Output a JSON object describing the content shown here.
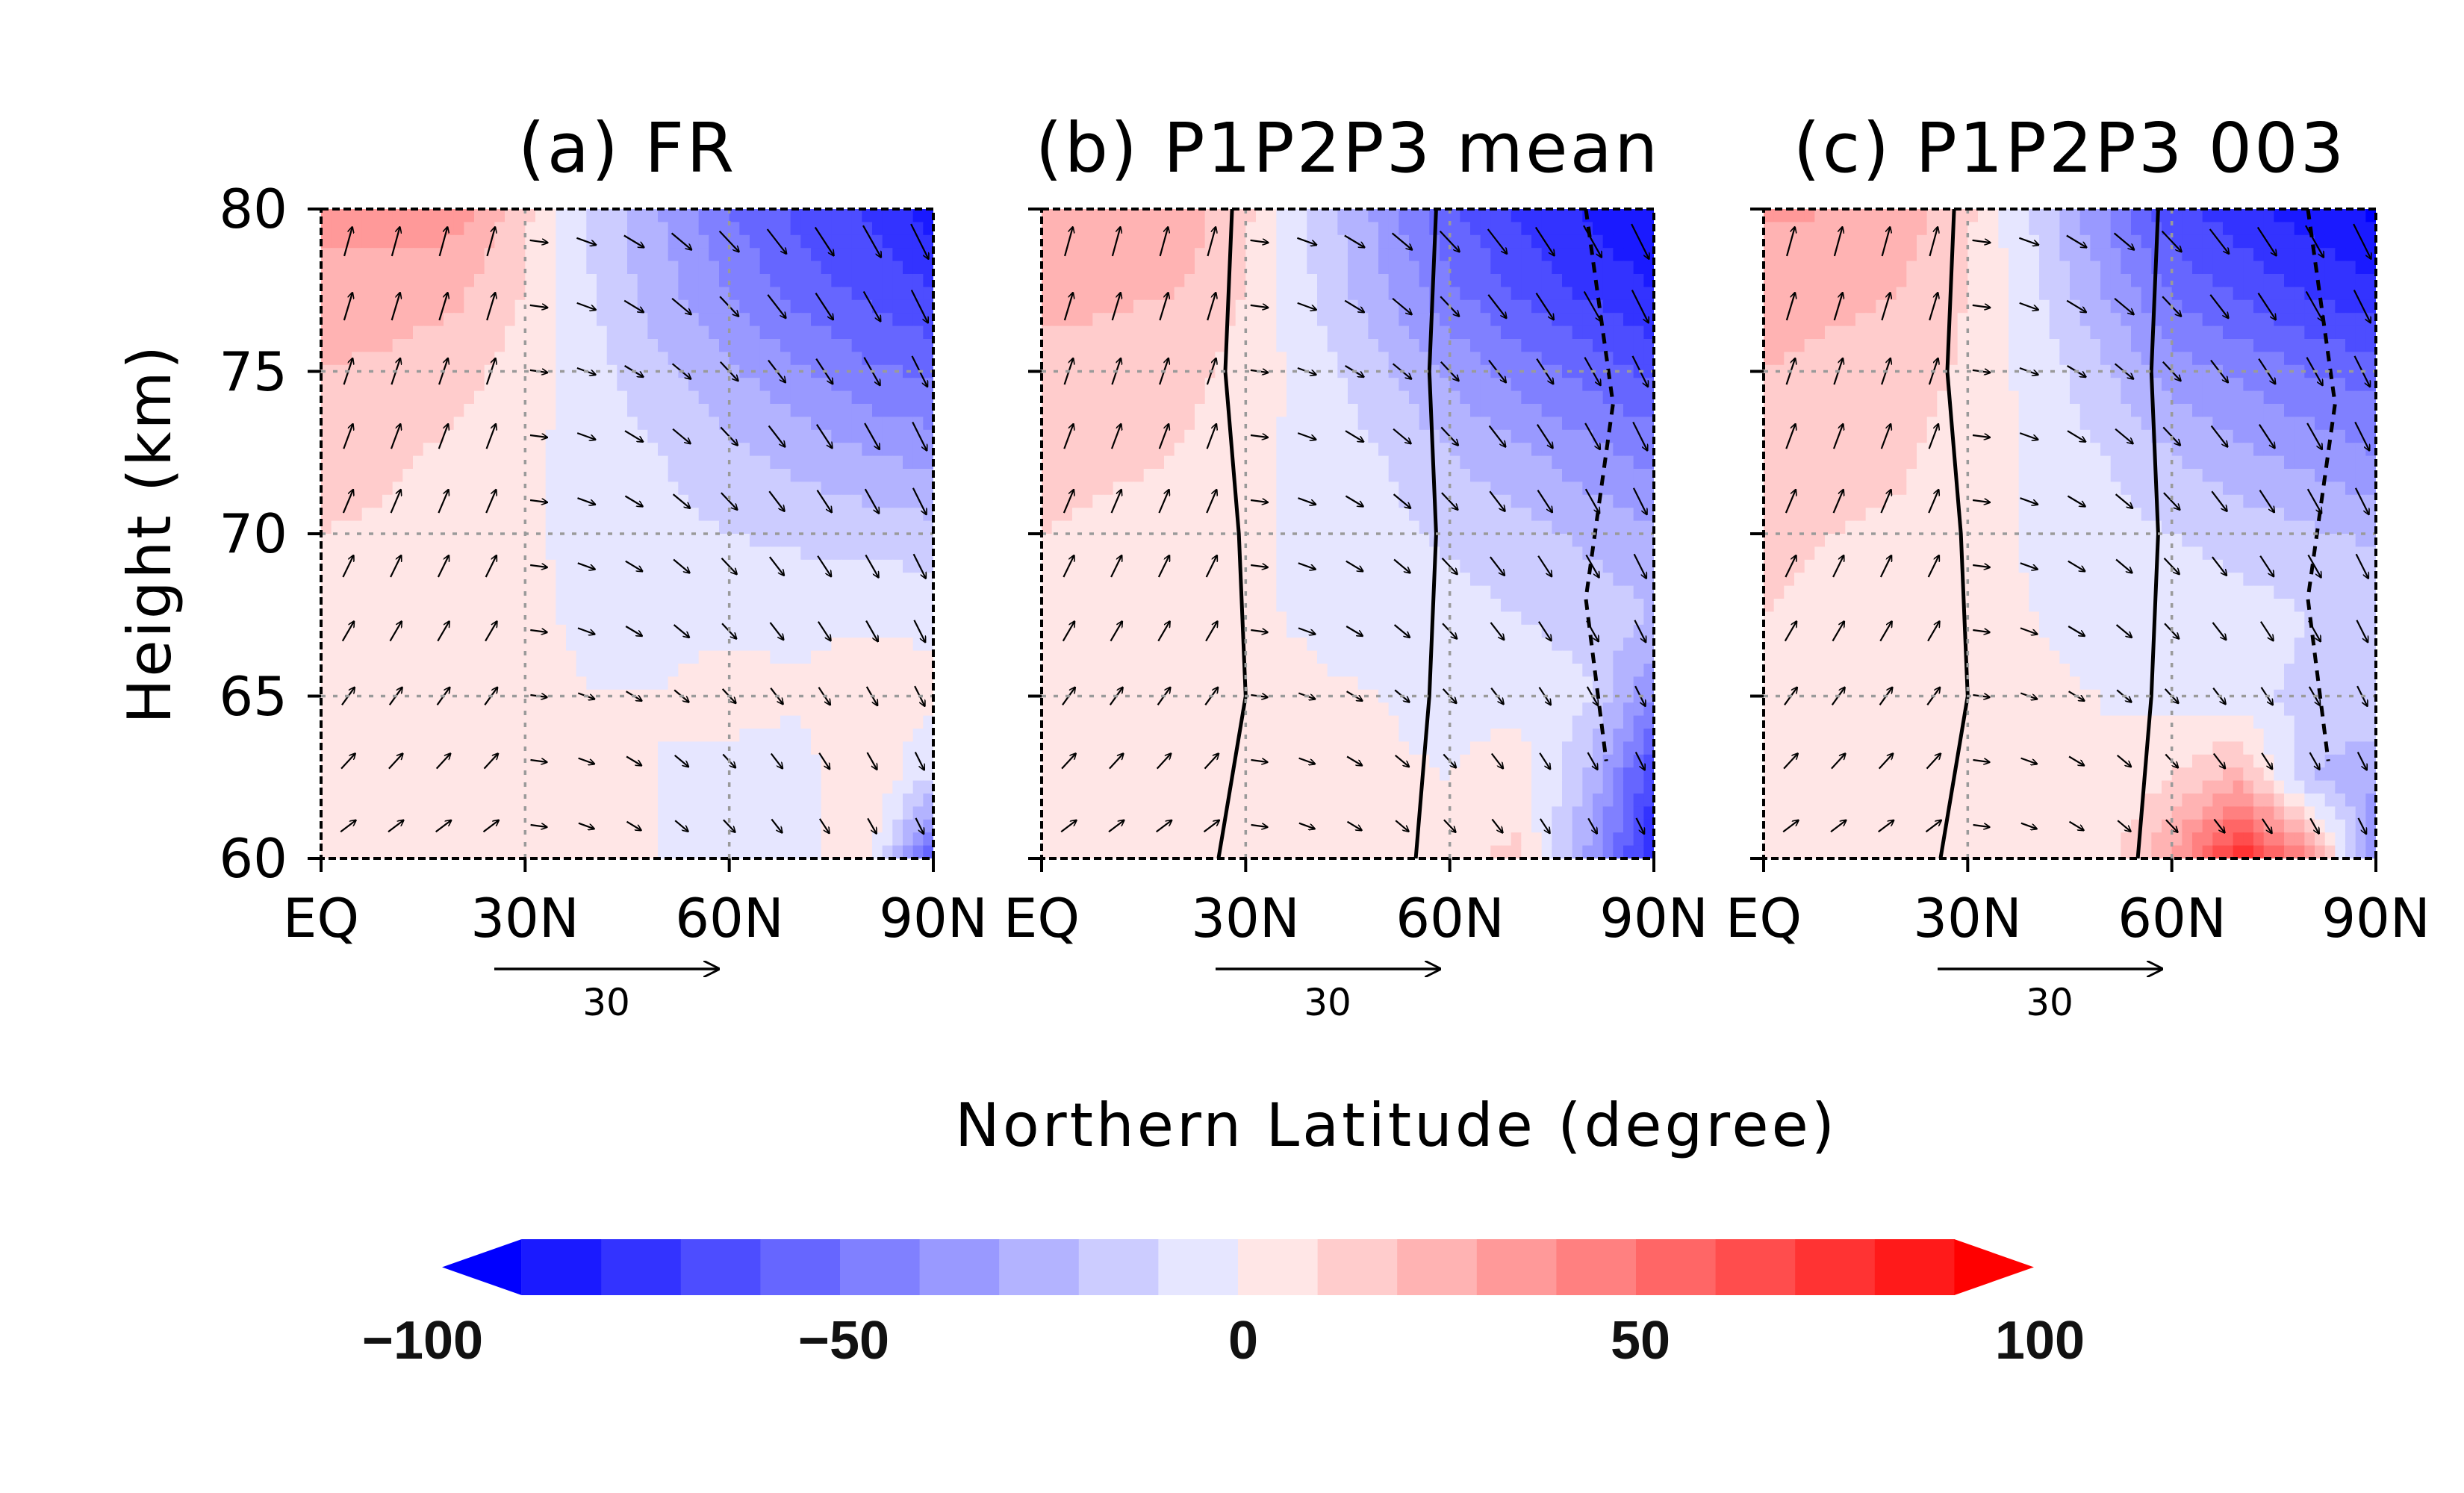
{
  "chart_data": {
    "type": "heatmap",
    "ylabel": "Height (km)",
    "xlabel": "Northern Latitude (degree)",
    "x_ticks": [
      "EQ",
      "30N",
      "60N",
      "90N"
    ],
    "y_ticks": [
      "60",
      "65",
      "70",
      "75",
      "80"
    ],
    "xlim": [
      0,
      90
    ],
    "ylim": [
      60,
      80
    ],
    "grid": "dotted gray at 30N, 60N and 65, 70, 75 km",
    "reference_vector": {
      "label": "30"
    },
    "colorbar": {
      "ticks": [
        "−100",
        "−50",
        "0",
        "50",
        "100"
      ],
      "range": [
        -100,
        100
      ],
      "step": 10,
      "colors": [
        "#0000ff",
        "#1a1aff",
        "#3333ff",
        "#4d4dff",
        "#6666ff",
        "#8080ff",
        "#9999ff",
        "#b3b3ff",
        "#ccccff",
        "#e6e6ff",
        "#ffe6e6",
        "#ffcccc",
        "#ffb3b3",
        "#ff9999",
        "#ff8080",
        "#ff6666",
        "#ff4d4d",
        "#ff3333",
        "#ff1a1a",
        "#ff0000"
      ],
      "extend": "both"
    },
    "panels": [
      {
        "title": "(a) FR",
        "contours": false,
        "field_rows_height_km": [
          80,
          77.5,
          75,
          72.5,
          70,
          67.5,
          65,
          62.5,
          60
        ],
        "field_cols_lat": [
          0,
          10,
          20,
          30,
          40,
          50,
          60,
          70,
          80,
          90
        ],
        "field": [
          [
            35,
            35,
            35,
            12,
            -12,
            -30,
            -50,
            -62,
            -72,
            -85
          ],
          [
            25,
            25,
            22,
            10,
            -10,
            -26,
            -40,
            -55,
            -62,
            -70
          ],
          [
            20,
            18,
            14,
            5,
            -6,
            -18,
            -28,
            -38,
            -48,
            -52
          ],
          [
            15,
            12,
            8,
            2,
            -4,
            -10,
            -18,
            -24,
            -30,
            -34
          ],
          [
            10,
            8,
            5,
            1,
            -2,
            -6,
            -10,
            -12,
            -14,
            -16
          ],
          [
            8,
            6,
            4,
            1,
            -1,
            -2,
            -3,
            -3,
            -3,
            -2
          ],
          [
            6,
            5,
            3,
            1,
            0,
            0,
            4,
            2,
            8,
            2
          ],
          [
            8,
            6,
            4,
            2,
            0,
            0,
            -4,
            -6,
            10,
            -10
          ],
          [
            8,
            6,
            4,
            2,
            0,
            0,
            -8,
            -6,
            10,
            -60
          ]
        ]
      },
      {
        "title": "(b) P1P2P3 mean",
        "contours": true,
        "field_rows_height_km": [
          80,
          77.5,
          75,
          72.5,
          70,
          67.5,
          65,
          62.5,
          60
        ],
        "field_cols_lat": [
          0,
          10,
          20,
          30,
          40,
          50,
          60,
          70,
          80,
          90
        ],
        "field": [
          [
            30,
            30,
            28,
            12,
            -12,
            -34,
            -58,
            -72,
            -82,
            -90
          ],
          [
            22,
            22,
            20,
            10,
            -10,
            -28,
            -48,
            -62,
            -72,
            -80
          ],
          [
            18,
            16,
            14,
            6,
            -5,
            -18,
            -32,
            -44,
            -54,
            -62
          ],
          [
            14,
            12,
            10,
            3,
            -3,
            -10,
            -20,
            -28,
            -36,
            -44
          ],
          [
            10,
            8,
            6,
            2,
            -2,
            -6,
            -12,
            -16,
            -22,
            -28
          ],
          [
            8,
            6,
            4,
            1,
            -1,
            -3,
            -6,
            -10,
            -14,
            -20
          ],
          [
            6,
            5,
            4,
            2,
            1,
            0,
            -2,
            -4,
            -8,
            -40
          ],
          [
            6,
            5,
            4,
            3,
            2,
            1,
            0,
            6,
            -20,
            -70
          ],
          [
            6,
            5,
            4,
            3,
            2,
            2,
            8,
            12,
            -30,
            -80
          ]
        ]
      },
      {
        "title": "(c) P1P2P3 003",
        "contours": true,
        "field_rows_height_km": [
          80,
          77.5,
          75,
          72.5,
          70,
          67.5,
          65,
          62.5,
          60
        ],
        "field_cols_lat": [
          0,
          10,
          20,
          30,
          40,
          50,
          60,
          70,
          80,
          90
        ],
        "field": [
          [
            32,
            30,
            26,
            12,
            -12,
            -40,
            -68,
            -76,
            -85,
            -92
          ],
          [
            24,
            22,
            20,
            10,
            -8,
            -30,
            -52,
            -62,
            -72,
            -78
          ],
          [
            20,
            18,
            16,
            8,
            -4,
            -18,
            -34,
            -42,
            -50,
            -55
          ],
          [
            16,
            14,
            12,
            5,
            -2,
            -10,
            -20,
            -28,
            -34,
            -40
          ],
          [
            12,
            10,
            8,
            3,
            -1,
            -5,
            -10,
            -14,
            -18,
            -22
          ],
          [
            10,
            8,
            6,
            2,
            0,
            -2,
            -4,
            -6,
            -10,
            -12
          ],
          [
            8,
            6,
            5,
            2,
            1,
            0,
            -4,
            -8,
            -12,
            -10
          ],
          [
            6,
            5,
            4,
            2,
            1,
            0,
            10,
            24,
            -20,
            -30
          ],
          [
            6,
            5,
            4,
            2,
            1,
            4,
            30,
            80,
            40,
            -40
          ]
        ]
      }
    ]
  }
}
